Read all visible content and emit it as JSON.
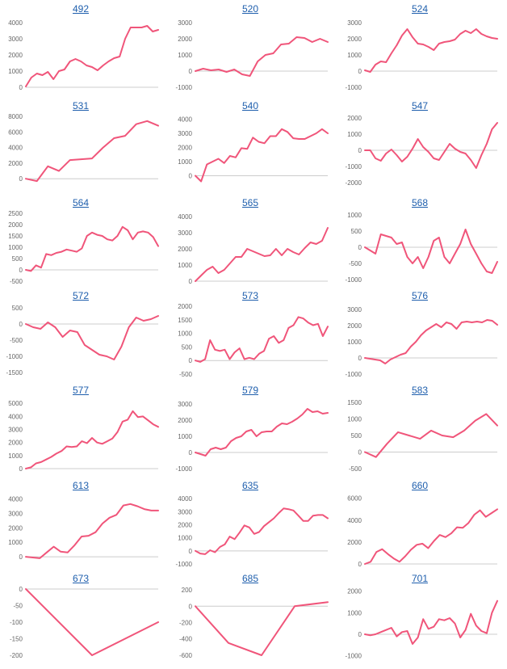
{
  "colors": {
    "line": "#f0557a",
    "axis": "#cccccc",
    "title": "#1f5fad",
    "tick": "#666666"
  },
  "chart_data": [
    {
      "type": "line",
      "title": "492",
      "yticks": [
        0,
        1000,
        2000,
        3000,
        4000
      ],
      "ylim": [
        0,
        4200
      ],
      "values": [
        50,
        600,
        850,
        750,
        950,
        500,
        1000,
        1100,
        1600,
        1750,
        1600,
        1350,
        1250,
        1050,
        1350,
        1600,
        1800,
        1900,
        3000,
        3700,
        3700,
        3700,
        3800,
        3450,
        3550
      ]
    },
    {
      "type": "line",
      "title": "520",
      "yticks": [
        -1000,
        0,
        1000,
        2000,
        3000
      ],
      "ylim": [
        -1000,
        3200
      ],
      "values": [
        0,
        150,
        50,
        100,
        -50,
        100,
        -200,
        -300,
        600,
        1000,
        1100,
        1650,
        1700,
        2100,
        2050,
        1800,
        2000,
        1800
      ]
    },
    {
      "type": "line",
      "title": "524",
      "yticks": [
        -1000,
        0,
        1000,
        2000,
        3000
      ],
      "ylim": [
        -1000,
        3200
      ],
      "values": [
        50,
        -50,
        400,
        600,
        550,
        1100,
        1600,
        2200,
        2600,
        2100,
        1700,
        1650,
        1500,
        1300,
        1700,
        1800,
        1850,
        1950,
        2300,
        2500,
        2350,
        2600,
        2300,
        2150,
        2050,
        2000
      ]
    },
    {
      "type": "line",
      "title": "531",
      "yticks": [
        0,
        2000,
        4000,
        6000,
        8000
      ],
      "ylim": [
        -700,
        8000
      ],
      "values": [
        0,
        -300,
        1600,
        1000,
        2400,
        2500,
        2600,
        4000,
        5200,
        5500,
        7000,
        7400,
        6800
      ]
    },
    {
      "type": "line",
      "title": "540",
      "yticks": [
        0,
        1000,
        2000,
        3000,
        4000
      ],
      "ylim": [
        -600,
        4200
      ],
      "values": [
        0,
        -400,
        800,
        1000,
        1200,
        900,
        1400,
        1300,
        1950,
        1900,
        2700,
        2400,
        2300,
        2800,
        2800,
        3300,
        3100,
        2650,
        2600,
        2600,
        2800,
        3000,
        3300,
        3000
      ]
    },
    {
      "type": "line",
      "title": "547",
      "yticks": [
        -2000,
        -1000,
        0,
        1000,
        2000
      ],
      "ylim": [
        -2100,
        2100
      ],
      "values": [
        0,
        0,
        -500,
        -650,
        -200,
        50,
        -300,
        -700,
        -400,
        100,
        700,
        200,
        -100,
        -500,
        -600,
        -100,
        400,
        100,
        -100,
        -200,
        -600,
        -1100,
        -300,
        400,
        1300,
        1700
      ]
    },
    {
      "type": "line",
      "title": "564",
      "yticks": [
        -500,
        0,
        500,
        1000,
        1500,
        2000,
        2500
      ],
      "ylim": [
        -500,
        2500
      ],
      "values": [
        0,
        -50,
        200,
        100,
        700,
        650,
        750,
        800,
        900,
        850,
        800,
        950,
        1500,
        1650,
        1550,
        1500,
        1350,
        1300,
        1500,
        1900,
        1750,
        1350,
        1650,
        1700,
        1650,
        1450,
        1050
      ]
    },
    {
      "type": "line",
      "title": "565",
      "yticks": [
        0,
        1000,
        2000,
        3000,
        4000
      ],
      "ylim": [
        0,
        4200
      ],
      "values": [
        0,
        350,
        700,
        900,
        500,
        700,
        1100,
        1500,
        1500,
        2000,
        1850,
        1700,
        1550,
        1600,
        2000,
        1600,
        2000,
        1800,
        1650,
        2050,
        2400,
        2300,
        2500,
        3300
      ]
    },
    {
      "type": "line",
      "title": "568",
      "yticks": [
        -1000,
        -500,
        0,
        500,
        1000
      ],
      "ylim": [
        -1050,
        1050
      ],
      "values": [
        0,
        -100,
        -200,
        400,
        350,
        300,
        100,
        150,
        -300,
        -500,
        -300,
        -650,
        -300,
        200,
        300,
        -300,
        -500,
        -200,
        100,
        550,
        100,
        -200,
        -500,
        -750,
        -800,
        -450
      ]
    },
    {
      "type": "line",
      "title": "572",
      "yticks": [
        -1500,
        -1000,
        -500,
        0,
        500
      ],
      "ylim": [
        -1550,
        550
      ],
      "values": [
        0,
        -100,
        -150,
        50,
        -100,
        -400,
        -200,
        -250,
        -650,
        -800,
        -950,
        -1000,
        -1100,
        -700,
        -100,
        200,
        100,
        150,
        250
      ]
    },
    {
      "type": "line",
      "title": "573",
      "yticks": [
        -500,
        0,
        500,
        1000,
        1500,
        2000
      ],
      "ylim": [
        -500,
        2000
      ],
      "values": [
        0,
        -50,
        50,
        750,
        400,
        350,
        400,
        50,
        300,
        450,
        50,
        100,
        50,
        250,
        350,
        800,
        900,
        650,
        750,
        1200,
        1300,
        1600,
        1550,
        1400,
        1300,
        1350,
        900,
        1250
      ]
    },
    {
      "type": "line",
      "title": "576",
      "yticks": [
        -1000,
        0,
        1000,
        2000,
        3000
      ],
      "ylim": [
        -1000,
        3200
      ],
      "values": [
        0,
        -50,
        -100,
        -150,
        -350,
        -100,
        50,
        200,
        300,
        700,
        1000,
        1400,
        1700,
        1900,
        2100,
        1900,
        2200,
        2100,
        1800,
        2200,
        2250,
        2200,
        2250,
        2200,
        2350,
        2300,
        2050
      ]
    },
    {
      "type": "line",
      "title": "577",
      "yticks": [
        0,
        1000,
        2000,
        3000,
        4000,
        5000
      ],
      "ylim": [
        0,
        5200
      ],
      "values": [
        0,
        100,
        400,
        500,
        700,
        900,
        1150,
        1350,
        1700,
        1650,
        1700,
        2100,
        1950,
        2350,
        2000,
        1900,
        2100,
        2300,
        2800,
        3600,
        3750,
        4400,
        3950,
        4000,
        3700,
        3400,
        3200
      ]
    },
    {
      "type": "line",
      "title": "579",
      "yticks": [
        -1000,
        0,
        1000,
        2000,
        3000
      ],
      "ylim": [
        -1000,
        3200
      ],
      "values": [
        0,
        -100,
        -200,
        200,
        300,
        200,
        300,
        700,
        900,
        1000,
        1300,
        1400,
        1000,
        1250,
        1300,
        1300,
        1600,
        1800,
        1750,
        1900,
        2100,
        2350,
        2700,
        2500,
        2550,
        2400,
        2450
      ]
    },
    {
      "type": "line",
      "title": "583",
      "yticks": [
        -500,
        0,
        500,
        1000,
        1500
      ],
      "ylim": [
        -500,
        1550
      ],
      "values": [
        0,
        -150,
        250,
        600,
        500,
        400,
        650,
        500,
        450,
        650,
        950,
        1150,
        800
      ]
    },
    {
      "type": "line",
      "title": "613",
      "yticks": [
        0,
        1000,
        2000,
        3000,
        4000
      ],
      "ylim": [
        -500,
        4200
      ],
      "values": [
        0,
        -50,
        -100,
        300,
        700,
        350,
        300,
        800,
        1400,
        1450,
        1700,
        2300,
        2700,
        2900,
        3550,
        3650,
        3500,
        3300,
        3200,
        3200
      ]
    },
    {
      "type": "line",
      "title": "635",
      "yticks": [
        -1000,
        0,
        1000,
        2000,
        3000,
        4000
      ],
      "ylim": [
        -1000,
        4200
      ],
      "values": [
        0,
        -200,
        -250,
        50,
        -100,
        300,
        500,
        1100,
        900,
        1400,
        1950,
        1800,
        1300,
        1450,
        1900,
        2200,
        2500,
        2900,
        3250,
        3200,
        3100,
        2700,
        2300,
        2300,
        2700,
        2750,
        2750,
        2500
      ]
    },
    {
      "type": "line",
      "title": "660",
      "yticks": [
        0,
        2000,
        4000,
        6000
      ],
      "ylim": [
        0,
        6200
      ],
      "values": [
        0,
        200,
        1100,
        1350,
        900,
        500,
        200,
        700,
        1300,
        1750,
        1850,
        1450,
        2100,
        2650,
        2450,
        2800,
        3350,
        3300,
        3750,
        4500,
        4900,
        4300,
        4650,
        5000
      ]
    },
    {
      "type": "line",
      "title": "673",
      "yticks": [
        -200,
        -150,
        -100,
        -50,
        0
      ],
      "ylim": [
        -205,
        0
      ],
      "values": [
        0,
        -200,
        -100
      ]
    },
    {
      "type": "line",
      "title": "685",
      "yticks": [
        -600,
        -400,
        -200,
        0,
        200
      ],
      "ylim": [
        -620,
        210
      ],
      "values": [
        0,
        -450,
        -600,
        0,
        50
      ]
    },
    {
      "type": "line",
      "title": "701",
      "yticks": [
        -1000,
        0,
        1000,
        2000
      ],
      "ylim": [
        -1050,
        2100
      ],
      "values": [
        0,
        -50,
        0,
        100,
        200,
        300,
        -100,
        100,
        150,
        -450,
        -150,
        700,
        250,
        350,
        700,
        650,
        750,
        500,
        -150,
        200,
        950,
        400,
        150,
        50,
        1000,
        1550
      ]
    }
  ]
}
